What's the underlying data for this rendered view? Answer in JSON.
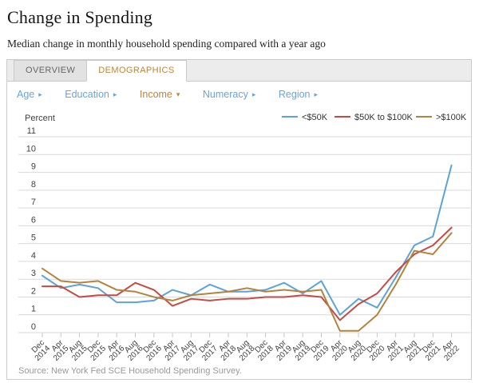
{
  "page": {
    "title": "Change in Spending",
    "subtitle": "Median change in monthly household spending compared with a year ago"
  },
  "tabs": [
    {
      "label": "OVERVIEW",
      "active": false
    },
    {
      "label": "DEMOGRAPHICS",
      "active": true
    }
  ],
  "filters": [
    {
      "label": "Age",
      "arrow": "▸",
      "state": "collapsed"
    },
    {
      "label": "Education",
      "arrow": "▸",
      "state": "collapsed"
    },
    {
      "label": "Income",
      "arrow": "▾",
      "state": "expanded"
    },
    {
      "label": "Numeracy",
      "arrow": "▸",
      "state": "collapsed"
    },
    {
      "label": "Region",
      "arrow": "▸",
      "state": "collapsed"
    }
  ],
  "source": "Source: New York Fed SCE Household Spending Survey.",
  "colors": {
    "accent_orange": "#bf8438",
    "link_blue": "#68a4d9",
    "series_under50k": "#5ba3d9",
    "series_50to100k": "#c64a44",
    "series_over100k": "#b5823c",
    "grid": "#d9d9d9",
    "tick": "#c6c6c6",
    "axis_text": "#3f3f3f",
    "source_text": "#999999"
  },
  "chart_data": {
    "type": "line",
    "title": "",
    "xlabel": "",
    "ylabel": "Percent",
    "ylim": [
      0,
      11
    ],
    "yticks": [
      0,
      1,
      2,
      3,
      4,
      5,
      6,
      7,
      8,
      9,
      10,
      11
    ],
    "grid": true,
    "legend_position": "top-right",
    "categories": [
      "Dec 2014",
      "Apr 2015",
      "Aug 2015",
      "Dec 2015",
      "Apr 2016",
      "Aug 2016",
      "Dec 2016",
      "Apr 2017",
      "Aug 2017",
      "Dec 2017",
      "Apr 2018",
      "Aug 2018",
      "Dec 2018",
      "Apr 2019",
      "Aug 2019",
      "Dec 2019",
      "Apr 2020",
      "Aug 2020",
      "Dec 2020",
      "Apr 2021",
      "Aug 2021",
      "Dec 2021",
      "Apr 2022"
    ],
    "series": [
      {
        "name": "<$50K",
        "color_key": "series_under50k",
        "values": [
          3.2,
          2.5,
          2.7,
          2.5,
          1.7,
          1.7,
          1.8,
          2.4,
          2.1,
          2.7,
          2.3,
          2.3,
          2.4,
          2.8,
          2.2,
          2.9,
          1.0,
          1.9,
          1.4,
          3.1,
          4.9,
          5.4,
          9.4
        ]
      },
      {
        "name": "$50K to $100K",
        "color_key": "series_50to100k",
        "values": [
          2.6,
          2.6,
          2.0,
          2.1,
          2.1,
          2.8,
          2.4,
          1.5,
          1.9,
          1.8,
          1.9,
          1.9,
          2.0,
          2.0,
          2.1,
          2.0,
          0.7,
          1.6,
          2.2,
          3.4,
          4.4,
          4.9,
          5.9
        ]
      },
      {
        "name": ">$100K",
        "color_key": "series_over100k",
        "values": [
          3.6,
          2.9,
          2.8,
          2.9,
          2.4,
          2.3,
          2.0,
          1.8,
          2.1,
          2.2,
          2.3,
          2.5,
          2.3,
          2.4,
          2.3,
          2.4,
          0.1,
          0.1,
          1.0,
          2.7,
          4.6,
          4.4,
          5.6
        ]
      }
    ]
  }
}
